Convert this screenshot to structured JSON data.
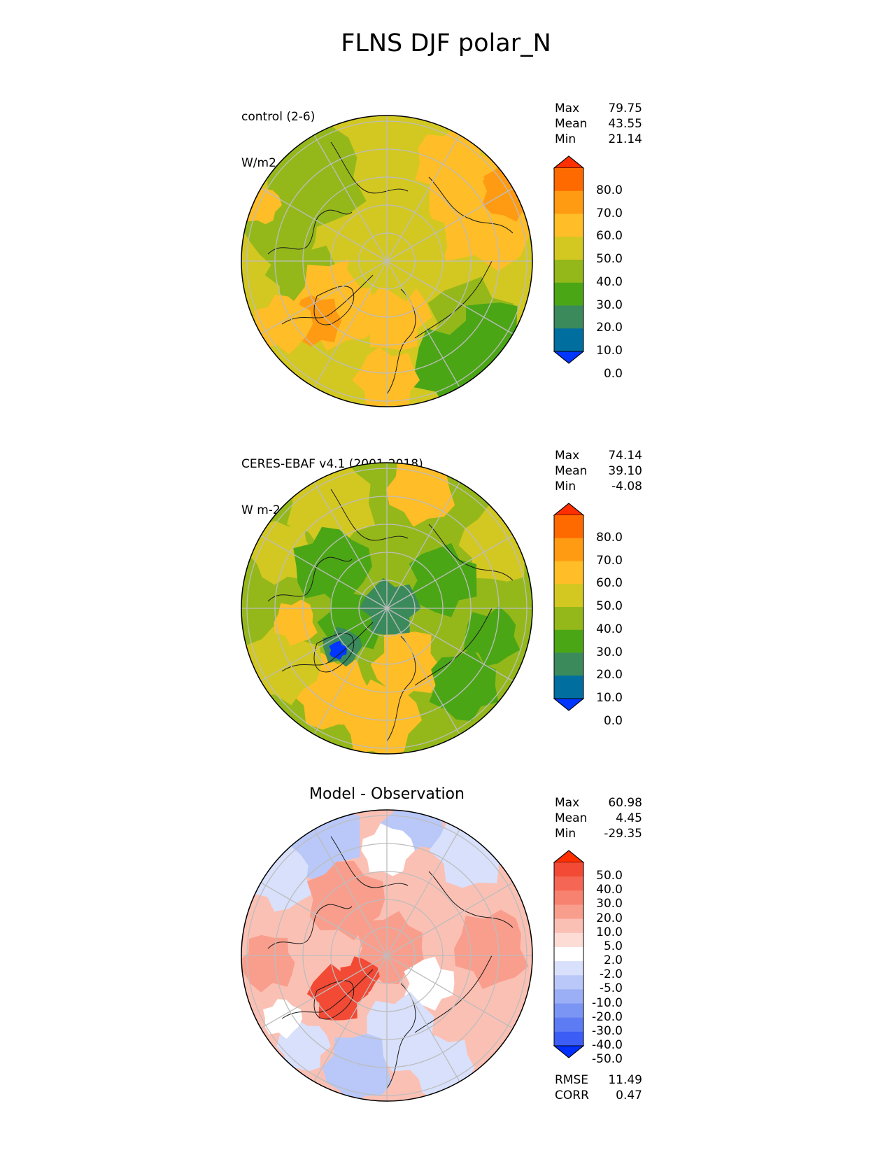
{
  "title": "FLNS DJF polar_N",
  "panels": [
    {
      "id": "control",
      "label_line1": "control (2-6)",
      "label_line2": "W/m2",
      "center_title": "",
      "stats": [
        {
          "label": "Max",
          "value": "79.75"
        },
        {
          "label": "Mean",
          "value": "43.55"
        },
        {
          "label": "Min",
          "value": "21.14"
        }
      ],
      "colorbar": {
        "colors": [
          "#0036ff",
          "#006e9f",
          "#3a8a5c",
          "#4ba616",
          "#94b81a",
          "#d2c821",
          "#ffbd27",
          "#ff9b12",
          "#ff6a00",
          "#ff2f00"
        ],
        "tick_labels": [
          "80.0",
          "70.0",
          "60.0",
          "50.0",
          "40.0",
          "30.0",
          "20.0",
          "10.0",
          "0.0"
        ]
      },
      "map_palette": {
        "base": "#d2c821",
        "warm": "#ffbd27",
        "cool": "#94b81a",
        "hot": "#ff9b12",
        "cold": "#4ba616"
      }
    },
    {
      "id": "obs",
      "label_line1": "CERES-EBAF v4.1 (2001-2018)",
      "label_line2": "W m-2",
      "center_title": "",
      "stats": [
        {
          "label": "Max",
          "value": "74.14"
        },
        {
          "label": "Mean",
          "value": "39.10"
        },
        {
          "label": "Min",
          "value": "-4.08"
        }
      ],
      "colorbar": {
        "colors": [
          "#0036ff",
          "#006e9f",
          "#3a8a5c",
          "#4ba616",
          "#94b81a",
          "#d2c821",
          "#ffbd27",
          "#ff9b12",
          "#ff6a00",
          "#ff2f00"
        ],
        "tick_labels": [
          "80.0",
          "70.0",
          "60.0",
          "50.0",
          "40.0",
          "30.0",
          "20.0",
          "10.0",
          "0.0"
        ]
      },
      "map_palette": {
        "base": "#94b81a",
        "warm": "#ffbd27",
        "cool": "#d2c821",
        "hot": "#4ba616",
        "cold": "#3a8a5c",
        "pole": "#3a8a5c",
        "blue": "#0036ff"
      }
    },
    {
      "id": "diff",
      "label_line1": "",
      "label_line2": "",
      "center_title": "Model - Observation",
      "stats": [
        {
          "label": "Max",
          "value": "60.98"
        },
        {
          "label": "Mean",
          "value": "4.45"
        },
        {
          "label": "Min",
          "value": "-29.35"
        }
      ],
      "extra_stats": [
        {
          "label": "RMSE",
          "value": "11.49"
        },
        {
          "label": "CORR",
          "value": "0.47"
        }
      ],
      "colorbar": {
        "colors": [
          "#0030ff",
          "#3c5ef6",
          "#5d7cf4",
          "#7b95f4",
          "#9aaff5",
          "#b9c8f8",
          "#d8e0fb",
          "#ffffff",
          "#fddcd6",
          "#fbc0b4",
          "#f99e8d",
          "#f78270",
          "#f56754",
          "#f24a35",
          "#ff2f00"
        ],
        "tick_labels": [
          "50.0",
          "40.0",
          "30.0",
          "20.0",
          "10.0",
          "5.0",
          "2.0",
          "-2.0",
          "-5.0",
          "-10.0",
          "-20.0",
          "-30.0",
          "-40.0",
          "-50.0"
        ]
      },
      "map_palette": {
        "base": "#fbc0b4",
        "warm": "#f99e8d",
        "cool": "#d8e0fb",
        "hot": "#f24a35",
        "cold": "#b9c8f8",
        "white": "#ffffff"
      }
    }
  ]
}
